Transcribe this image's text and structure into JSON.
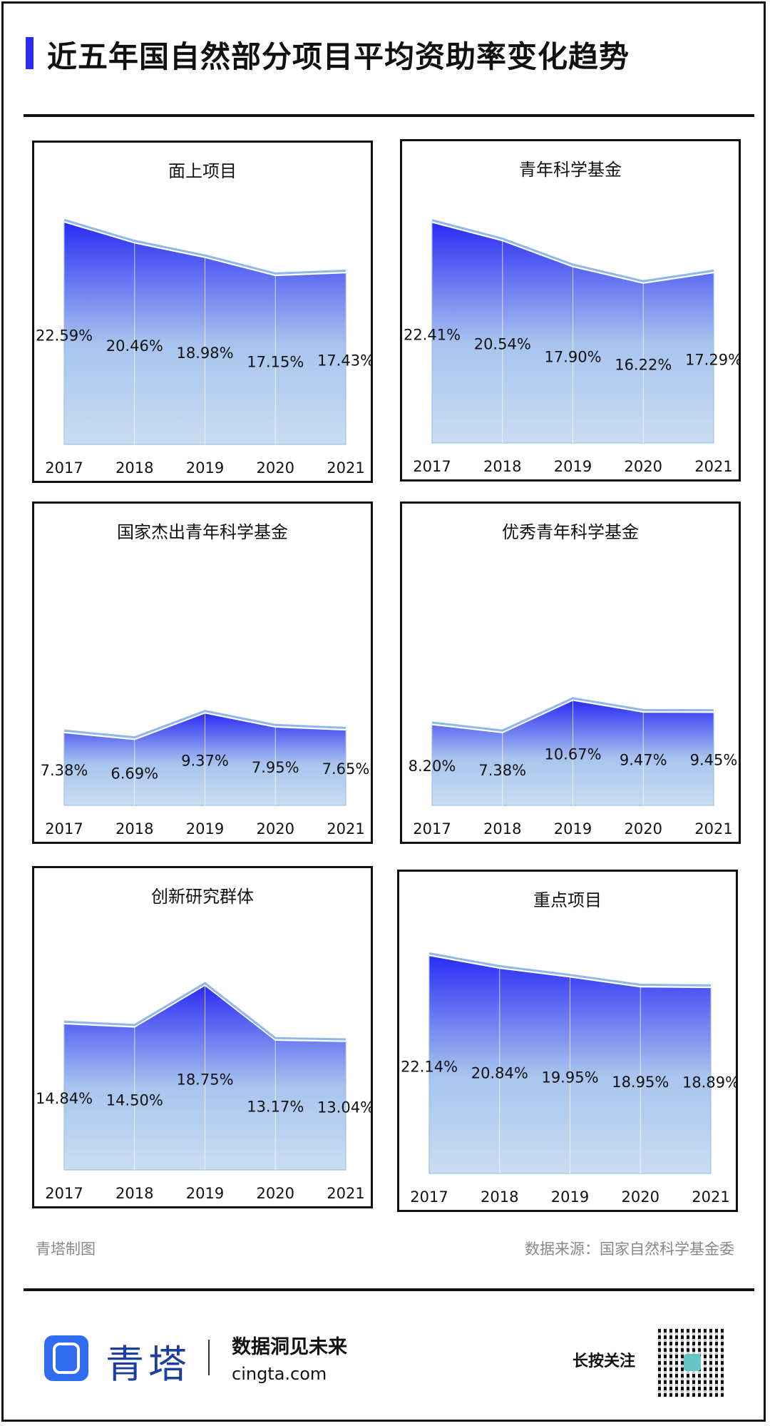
{
  "title": "近五年国自然部分项目平均资助率变化趋势",
  "footer": {
    "credit": "青塔制图",
    "source": "数据来源：国家自然科学基金委",
    "brand": "青塔",
    "slogan": "数据洞见未来",
    "site": "cingta.com",
    "follow": "长按关注"
  },
  "colors": {
    "accent": "#2b2bf2",
    "area_top": "#2b2bf5",
    "area_bottom": "#c9ddf1",
    "line": "#8fb8ea"
  },
  "chart_data": [
    {
      "type": "area",
      "title": "面上项目",
      "categories": [
        "2017",
        "2018",
        "2019",
        "2020",
        "2021"
      ],
      "values": [
        22.59,
        20.46,
        18.98,
        17.15,
        17.43
      ],
      "labels": [
        "22.59%",
        "20.46%",
        "18.98%",
        "17.15%",
        "17.43%"
      ],
      "unit": "%"
    },
    {
      "type": "area",
      "title": "青年科学基金",
      "categories": [
        "2017",
        "2018",
        "2019",
        "2020",
        "2021"
      ],
      "values": [
        22.41,
        20.54,
        17.9,
        16.22,
        17.29
      ],
      "labels": [
        "22.41%",
        "20.54%",
        "17.90%",
        "16.22%",
        "17.29%"
      ],
      "unit": "%"
    },
    {
      "type": "area",
      "title": "国家杰出青年科学基金",
      "categories": [
        "2017",
        "2018",
        "2019",
        "2020",
        "2021"
      ],
      "values": [
        7.38,
        6.69,
        9.37,
        7.95,
        7.65
      ],
      "labels": [
        "7.38%",
        "6.69%",
        "9.37%",
        "7.95%",
        "7.65%"
      ],
      "unit": "%"
    },
    {
      "type": "area",
      "title": "优秀青年科学基金",
      "categories": [
        "2017",
        "2018",
        "2019",
        "2020",
        "2021"
      ],
      "values": [
        8.2,
        7.38,
        10.67,
        9.47,
        9.45
      ],
      "labels": [
        "8.20%",
        "7.38%",
        "10.67%",
        "9.47%",
        "9.45%"
      ],
      "unit": "%"
    },
    {
      "type": "area",
      "title": "创新研究群体",
      "categories": [
        "2017",
        "2018",
        "2019",
        "2020",
        "2021"
      ],
      "values": [
        14.84,
        14.5,
        18.75,
        13.17,
        13.04
      ],
      "labels": [
        "14.84%",
        "14.50%",
        "18.75%",
        "13.17%",
        "13.04%"
      ],
      "unit": "%"
    },
    {
      "type": "area",
      "title": "重点项目",
      "categories": [
        "2017",
        "2018",
        "2019",
        "2020",
        "2021"
      ],
      "values": [
        22.14,
        20.84,
        19.95,
        18.95,
        18.89
      ],
      "labels": [
        "22.14%",
        "20.84%",
        "19.95%",
        "18.95%",
        "18.89%"
      ],
      "unit": "%"
    }
  ]
}
